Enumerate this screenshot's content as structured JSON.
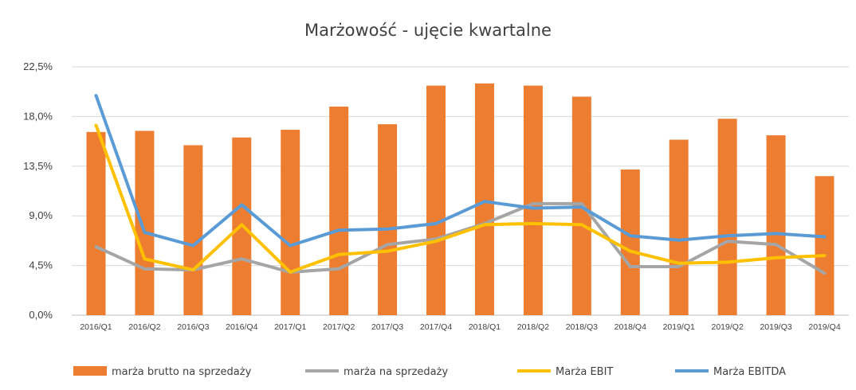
{
  "chart_data": {
    "type": "bar",
    "title": "Marżowość - ujęcie kwartalne",
    "xlabel": "",
    "ylabel": "",
    "ylim": [
      0,
      22.5
    ],
    "y_ticks": [
      "0,0%",
      "4,5%",
      "9,0%",
      "13,5%",
      "18,0%",
      "22,5%"
    ],
    "grid": true,
    "legend_position": "bottom",
    "categories": [
      "2016/Q1",
      "2016/Q2",
      "2016/Q3",
      "2016/Q4",
      "2017/Q1",
      "2017/Q2",
      "2017/Q3",
      "2017/Q4",
      "2018/Q1",
      "2018/Q2",
      "2018/Q3",
      "2018/Q4",
      "2019/Q1",
      "2019/Q2",
      "2019/Q3",
      "2019/Q4"
    ],
    "series": [
      {
        "name": "marża brutto na sprzedaży",
        "kind": "bar",
        "color": "#ED7D31",
        "values": [
          16.6,
          16.7,
          15.4,
          16.1,
          16.8,
          18.9,
          17.3,
          20.8,
          21.0,
          20.8,
          19.8,
          13.2,
          15.9,
          17.8,
          16.3,
          12.6
        ]
      },
      {
        "name": "marża na sprzedaży",
        "kind": "line",
        "color": "#A5A5A5",
        "values": [
          6.2,
          4.2,
          4.1,
          5.1,
          3.9,
          4.2,
          6.4,
          6.9,
          8.3,
          10.1,
          10.1,
          4.4,
          4.4,
          6.7,
          6.4,
          3.8
        ]
      },
      {
        "name": "Marża EBIT",
        "kind": "line",
        "color": "#FFC000",
        "values": [
          17.2,
          5.1,
          4.1,
          8.2,
          3.9,
          5.5,
          5.8,
          6.7,
          8.2,
          8.3,
          8.2,
          5.8,
          4.7,
          4.8,
          5.2,
          5.4
        ]
      },
      {
        "name": "Marża EBITDA",
        "kind": "line",
        "color": "#5B9BD5",
        "values": [
          19.9,
          7.5,
          6.3,
          10.0,
          6.3,
          7.7,
          7.8,
          8.3,
          10.3,
          9.7,
          9.8,
          7.2,
          6.8,
          7.2,
          7.4,
          7.1
        ]
      }
    ]
  },
  "colors": {
    "grid": "#D9D9D9",
    "axis": "#BFBFBF",
    "text": "#404040"
  }
}
